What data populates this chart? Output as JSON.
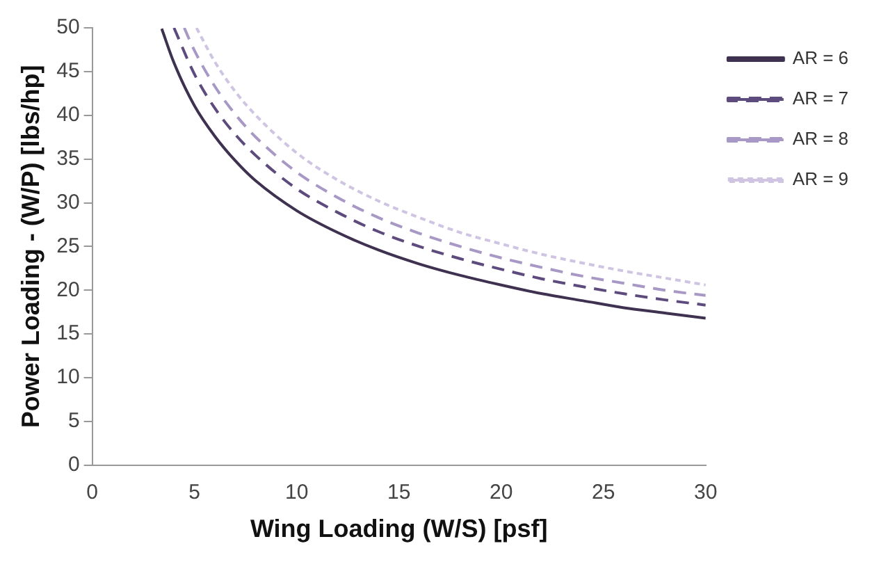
{
  "chart_data": {
    "type": "line",
    "xlabel": "Wing Loading (W/S) [psf]",
    "ylabel": "Power Loading - (W/P) [lbs/hp]",
    "xlim": [
      0,
      30
    ],
    "xticks": [
      0,
      5,
      10,
      15,
      20,
      25,
      30
    ],
    "ylim": [
      0,
      50
    ],
    "yticks": [
      0,
      5,
      10,
      15,
      20,
      25,
      30,
      35,
      40,
      45,
      50
    ],
    "grid": false,
    "legend": "right",
    "marker": "none",
    "series": [
      {
        "name": "AR = 6",
        "color": "#3f3150",
        "line_style": "solid",
        "x": [
          3.4,
          4,
          5,
          6,
          7,
          8,
          10,
          12,
          14,
          16,
          18,
          20,
          22,
          24,
          26,
          28,
          30
        ],
        "values": [
          49.9,
          46.0,
          41.1,
          37.6,
          34.8,
          32.5,
          29.1,
          26.6,
          24.6,
          23.0,
          21.7,
          20.6,
          19.6,
          18.8,
          18.0,
          17.4,
          16.8
        ]
      },
      {
        "name": "AR = 7",
        "color": "#5e4b7e",
        "line_style": "dashed",
        "x": [
          4,
          5,
          6,
          7,
          8,
          10,
          12,
          14,
          16,
          18,
          20,
          22,
          24,
          26,
          28,
          30
        ],
        "values": [
          50,
          44.7,
          40.8,
          37.8,
          35.4,
          31.6,
          28.9,
          26.7,
          25.0,
          23.6,
          22.4,
          21.3,
          20.4,
          19.6,
          18.9,
          18.3
        ]
      },
      {
        "name": "AR = 8",
        "color": "#a798c6",
        "line_style": "dashed",
        "x": [
          4.5,
          5,
          6,
          7,
          8,
          10,
          12,
          14,
          16,
          18,
          20,
          22,
          24,
          26,
          28,
          30
        ],
        "values": [
          50,
          47.4,
          43.3,
          40.1,
          37.5,
          33.5,
          30.6,
          28.3,
          26.5,
          25.0,
          23.7,
          22.6,
          21.6,
          20.8,
          20.0,
          19.4
        ]
      },
      {
        "name": "AR = 9",
        "color": "#cfc5e3",
        "line_style": "dotted",
        "x": [
          5.1,
          6,
          7,
          8,
          10,
          12,
          14,
          16,
          18,
          20,
          22,
          24,
          26,
          28,
          30
        ],
        "values": [
          50,
          46.1,
          42.7,
          40.0,
          35.7,
          32.6,
          30.2,
          28.3,
          26.6,
          25.3,
          24.1,
          23.1,
          22.2,
          21.4,
          20.6
        ]
      }
    ]
  }
}
